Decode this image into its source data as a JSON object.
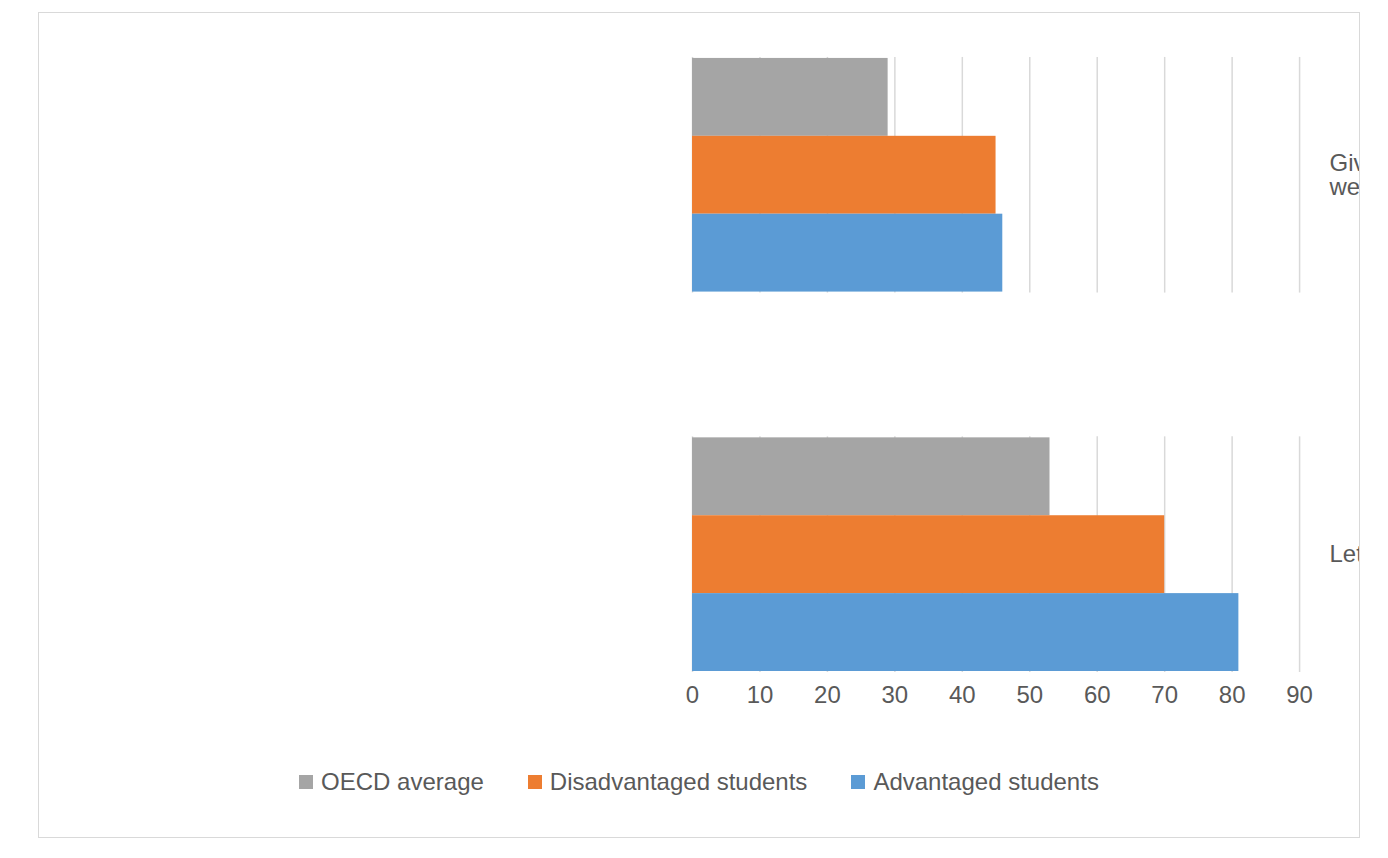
{
  "chart_data": {
    "type": "bar",
    "orientation": "horizontal",
    "categories": [
      "Give students projects that require at least one week to complete",
      "Let students use ICT for projects or class work"
    ],
    "series": [
      {
        "name": "OECD average",
        "color": "#a5a5a5",
        "values": [
          29,
          53
        ]
      },
      {
        "name": "Disadvantaged students",
        "color": "#ed7d31",
        "values": [
          45,
          70
        ]
      },
      {
        "name": "Advantaged students",
        "color": "#5b9bd5",
        "values": [
          46,
          81
        ]
      }
    ],
    "xlim": [
      0,
      90
    ],
    "xticks": [
      0,
      10,
      20,
      30,
      40,
      50,
      60,
      70,
      80,
      90
    ],
    "grid": true,
    "legend": "bottom"
  }
}
